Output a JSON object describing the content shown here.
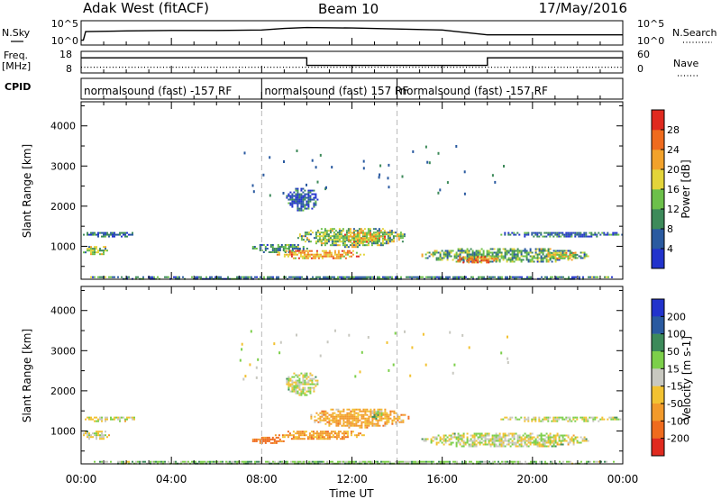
{
  "header": {
    "station": "Adak West (fitACF)",
    "beam": "Beam 10",
    "date": "17/May/2016"
  },
  "top_panel": {
    "nsky_label": "N.Sky",
    "nsearch_label": "N.Search",
    "nsky_ticks": [
      "10^5",
      "10^0"
    ],
    "nsearch_ticks": [
      "10^5",
      "10^0"
    ],
    "freq_label_line1": "Freq.",
    "freq_label_line2": "[MHz]",
    "freq_ticks": [
      "18",
      "8"
    ],
    "nave_label": "Nave",
    "nave_ticks": [
      "60",
      "0"
    ],
    "cpid_label": "CPID",
    "cpid_segments": [
      {
        "label": "normalsound (fast) -157 RF",
        "start_hour": 0,
        "end_hour": 8
      },
      {
        "label": "normalsound (fast) 157 RF",
        "start_hour": 8,
        "end_hour": 14
      },
      {
        "label": "normalsound (fast) -157 RF",
        "start_hour": 14,
        "end_hour": 24
      }
    ]
  },
  "axes": {
    "xlabel": "Time UT",
    "x_tick_labels": [
      "00:00",
      "04:00",
      "08:00",
      "12:00",
      "16:00",
      "20:00",
      "00:00"
    ],
    "ylabel": "Slant Range [km]",
    "y_tick_labels": [
      "1000",
      "2000",
      "3000",
      "4000"
    ]
  },
  "colorbars": {
    "power": {
      "label": "Power [dB]",
      "tick_labels": [
        "4",
        "8",
        "12",
        "16",
        "20",
        "24",
        "28"
      ],
      "colors": [
        "#2233cc",
        "#2a5aa0",
        "#3d8a5a",
        "#6cc04a",
        "#e3d43a",
        "#f2a22b",
        "#ef6b1e",
        "#e02a1f"
      ]
    },
    "velocity": {
      "label": "Velocity [m s-1]",
      "tick_labels": [
        "200",
        "100",
        "50",
        "15",
        "-15",
        "-50",
        "-100",
        "-200"
      ],
      "colors": [
        "#2233cc",
        "#2a5aa0",
        "#3d8a5a",
        "#7ccf4a",
        "#c8c8c0",
        "#f2c232",
        "#f29a2b",
        "#ef6b1e",
        "#e02a1f"
      ]
    }
  },
  "chart_data": [
    {
      "type": "line",
      "title": "N.Sky / N.Search",
      "xlim": [
        0,
        24
      ],
      "series": [
        {
          "name": "N.Sky",
          "x": [
            0,
            0.1,
            0.2,
            2,
            4,
            6,
            8,
            9,
            10,
            12,
            14,
            16,
            18,
            20,
            22,
            24
          ],
          "values": [
            0.2,
            0.2,
            0.55,
            0.58,
            0.6,
            0.6,
            0.62,
            0.68,
            0.72,
            0.7,
            0.66,
            0.62,
            0.42,
            0.42,
            0.42,
            0.42
          ]
        }
      ]
    },
    {
      "type": "line",
      "title": "Freq. / Nave",
      "xlim": [
        0,
        24
      ],
      "series": [
        {
          "name": "Freq. [MHz]",
          "x": [
            0,
            10,
            10,
            18,
            18,
            24
          ],
          "values": [
            15,
            15,
            11.5,
            11.5,
            15,
            15
          ]
        },
        {
          "name": "Nave",
          "x": [
            0,
            24
          ],
          "values": [
            16,
            16
          ]
        }
      ]
    },
    {
      "type": "heatmap",
      "title": "Power [dB]",
      "xlabel": "Time UT",
      "ylabel": "Slant Range [km]",
      "xlim": [
        0,
        24
      ],
      "ylim": [
        180,
        4600
      ],
      "echo_regions": [
        {
          "t": [
            0.0,
            1.2
          ],
          "r": [
            800,
            1050
          ],
          "value": 14
        },
        {
          "t": [
            0.0,
            2.5
          ],
          "r": [
            1250,
            1400
          ],
          "value": 6
        },
        {
          "t": [
            7.5,
            10.0
          ],
          "r": [
            850,
            1100
          ],
          "value": 10
        },
        {
          "t": [
            8.5,
            12.5
          ],
          "r": [
            700,
            950
          ],
          "value": 22
        },
        {
          "t": [
            9.5,
            14.5
          ],
          "r": [
            1000,
            1500
          ],
          "value": 14
        },
        {
          "t": [
            11.5,
            13.5
          ],
          "r": [
            1100,
            1400
          ],
          "value": 20
        },
        {
          "t": [
            9.0,
            10.5
          ],
          "r": [
            1900,
            2500
          ],
          "value": 6
        },
        {
          "t": [
            15.0,
            22.5
          ],
          "r": [
            600,
            1000
          ],
          "value": 12
        },
        {
          "t": [
            16.5,
            18.5
          ],
          "r": [
            600,
            800
          ],
          "value": 24
        },
        {
          "t": [
            20.5,
            22.0
          ],
          "r": [
            700,
            900
          ],
          "value": 18
        },
        {
          "t": [
            18.5,
            24.0
          ],
          "r": [
            1250,
            1400
          ],
          "value": 6
        },
        {
          "t": [
            0.0,
            24.0
          ],
          "r": [
            180,
            300
          ],
          "value": 8
        }
      ]
    },
    {
      "type": "heatmap",
      "title": "Velocity [m s-1]",
      "xlabel": "Time UT",
      "ylabel": "Slant Range [km]",
      "xlim": [
        0,
        24
      ],
      "ylim": [
        180,
        4600
      ],
      "echo_regions": [
        {
          "t": [
            0.0,
            1.2
          ],
          "r": [
            800,
            1050
          ],
          "value": 0
        },
        {
          "t": [
            0.0,
            2.5
          ],
          "r": [
            1250,
            1400
          ],
          "value": 0
        },
        {
          "t": [
            7.5,
            9.0
          ],
          "r": [
            700,
            900
          ],
          "value": -120
        },
        {
          "t": [
            8.5,
            12.5
          ],
          "r": [
            800,
            1050
          ],
          "value": -70
        },
        {
          "t": [
            10.0,
            14.5
          ],
          "r": [
            1100,
            1600
          ],
          "value": -60
        },
        {
          "t": [
            12.8,
            13.3
          ],
          "r": [
            1300,
            1550
          ],
          "value": 30
        },
        {
          "t": [
            9.0,
            10.5
          ],
          "r": [
            1900,
            2500
          ],
          "value": 0
        },
        {
          "t": [
            15.0,
            22.5
          ],
          "r": [
            600,
            1000
          ],
          "value": 0
        },
        {
          "t": [
            18.5,
            24.0
          ],
          "r": [
            1250,
            1400
          ],
          "value": 0
        },
        {
          "t": [
            0.0,
            24.0
          ],
          "r": [
            180,
            300
          ],
          "value": 30
        }
      ]
    }
  ]
}
